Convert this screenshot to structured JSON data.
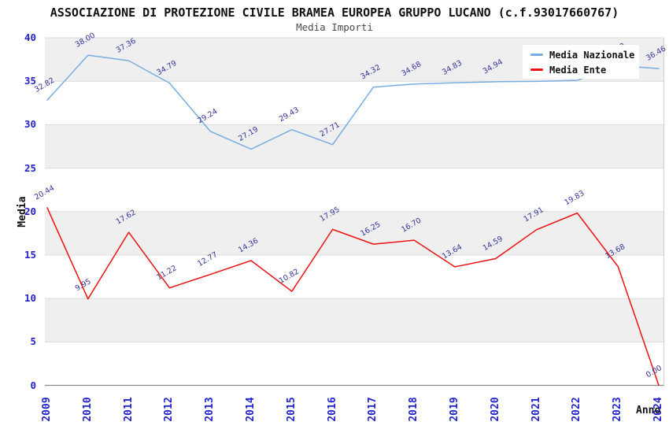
{
  "title": "ASSOCIAZIONE DI PROTEZIONE CIVILE BRAMEA EUROPEA GRUPPO LUCANO (c.f.93017660767)",
  "subtitle": "Media Importi",
  "colors": {
    "media_nazionale": "#79ace1",
    "media_ente": "#ee1111",
    "tick_label": "#2323cc",
    "data_label": "#333399",
    "band_gray": "#efefef",
    "band_white": "#ffffff",
    "gridline": "#dcdcdc",
    "axis_line": "#8a8a8a",
    "plot_border": "#cfcfcf"
  },
  "legend": {
    "items": [
      {
        "label": "Media Nazionale",
        "color": "#79ace1"
      },
      {
        "label": "Media Ente",
        "color": "#ee1111"
      }
    ]
  },
  "chart_data": {
    "type": "line",
    "title": "ASSOCIAZIONE DI PROTEZIONE CIVILE BRAMEA EUROPEA GRUPPO LUCANO (c.f.93017660767)",
    "subtitle": "Media Importi",
    "xlabel": "Anno",
    "ylabel": "Media",
    "x": [
      "2009",
      "2010",
      "2011",
      "2012",
      "2013",
      "2014",
      "2015",
      "2016",
      "2017",
      "2018",
      "2019",
      "2020",
      "2021",
      "2022",
      "2023",
      "2024"
    ],
    "yticks": [
      0,
      5,
      10,
      15,
      20,
      25,
      30,
      35,
      40
    ],
    "ylim": [
      0,
      40
    ],
    "grid": true,
    "legend_position": "top-right",
    "series": [
      {
        "name": "Media Nazionale",
        "color": "#79ace1",
        "values": [
          32.82,
          38.0,
          37.36,
          34.79,
          29.24,
          27.19,
          29.43,
          27.71,
          34.32,
          34.68,
          34.83,
          34.94,
          34.98,
          35.1,
          36.8,
          36.46
        ]
      },
      {
        "name": "Media Ente",
        "color": "#ee1111",
        "values": [
          20.44,
          9.95,
          17.62,
          11.22,
          12.77,
          14.36,
          10.82,
          17.95,
          16.25,
          16.7,
          13.64,
          14.59,
          17.91,
          19.83,
          13.68,
          0.0
        ]
      }
    ]
  }
}
